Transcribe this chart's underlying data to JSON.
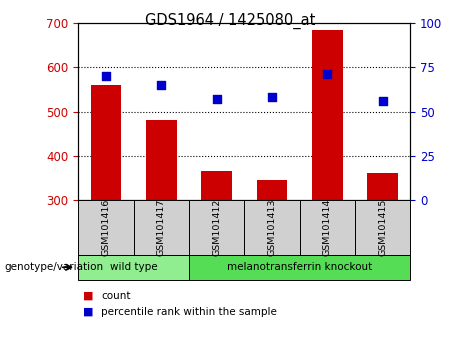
{
  "title": "GDS1964 / 1425080_at",
  "samples": [
    "GSM101416",
    "GSM101417",
    "GSM101412",
    "GSM101413",
    "GSM101414",
    "GSM101415"
  ],
  "counts": [
    560,
    480,
    365,
    345,
    685,
    360
  ],
  "percentile_ranks": [
    70,
    65,
    57,
    58,
    71,
    56
  ],
  "ylim_left": [
    300,
    700
  ],
  "ylim_right": [
    0,
    100
  ],
  "yticks_left": [
    300,
    400,
    500,
    600,
    700
  ],
  "yticks_right": [
    0,
    25,
    50,
    75,
    100
  ],
  "bar_color": "#cc0000",
  "scatter_color": "#0000cc",
  "bar_bottom": 300,
  "groups": [
    {
      "label": "wild type",
      "indices": [
        0,
        1
      ],
      "color": "#90ee90"
    },
    {
      "label": "melanotransferrin knockout",
      "indices": [
        2,
        3,
        4,
        5
      ],
      "color": "#55dd55"
    }
  ],
  "genotype_label": "genotype/variation",
  "legend_count": "count",
  "legend_percentile": "percentile rank within the sample",
  "left_tick_color": "#cc0000",
  "right_tick_color": "#0000cc",
  "fig_width": 4.61,
  "fig_height": 3.54,
  "dpi": 100
}
